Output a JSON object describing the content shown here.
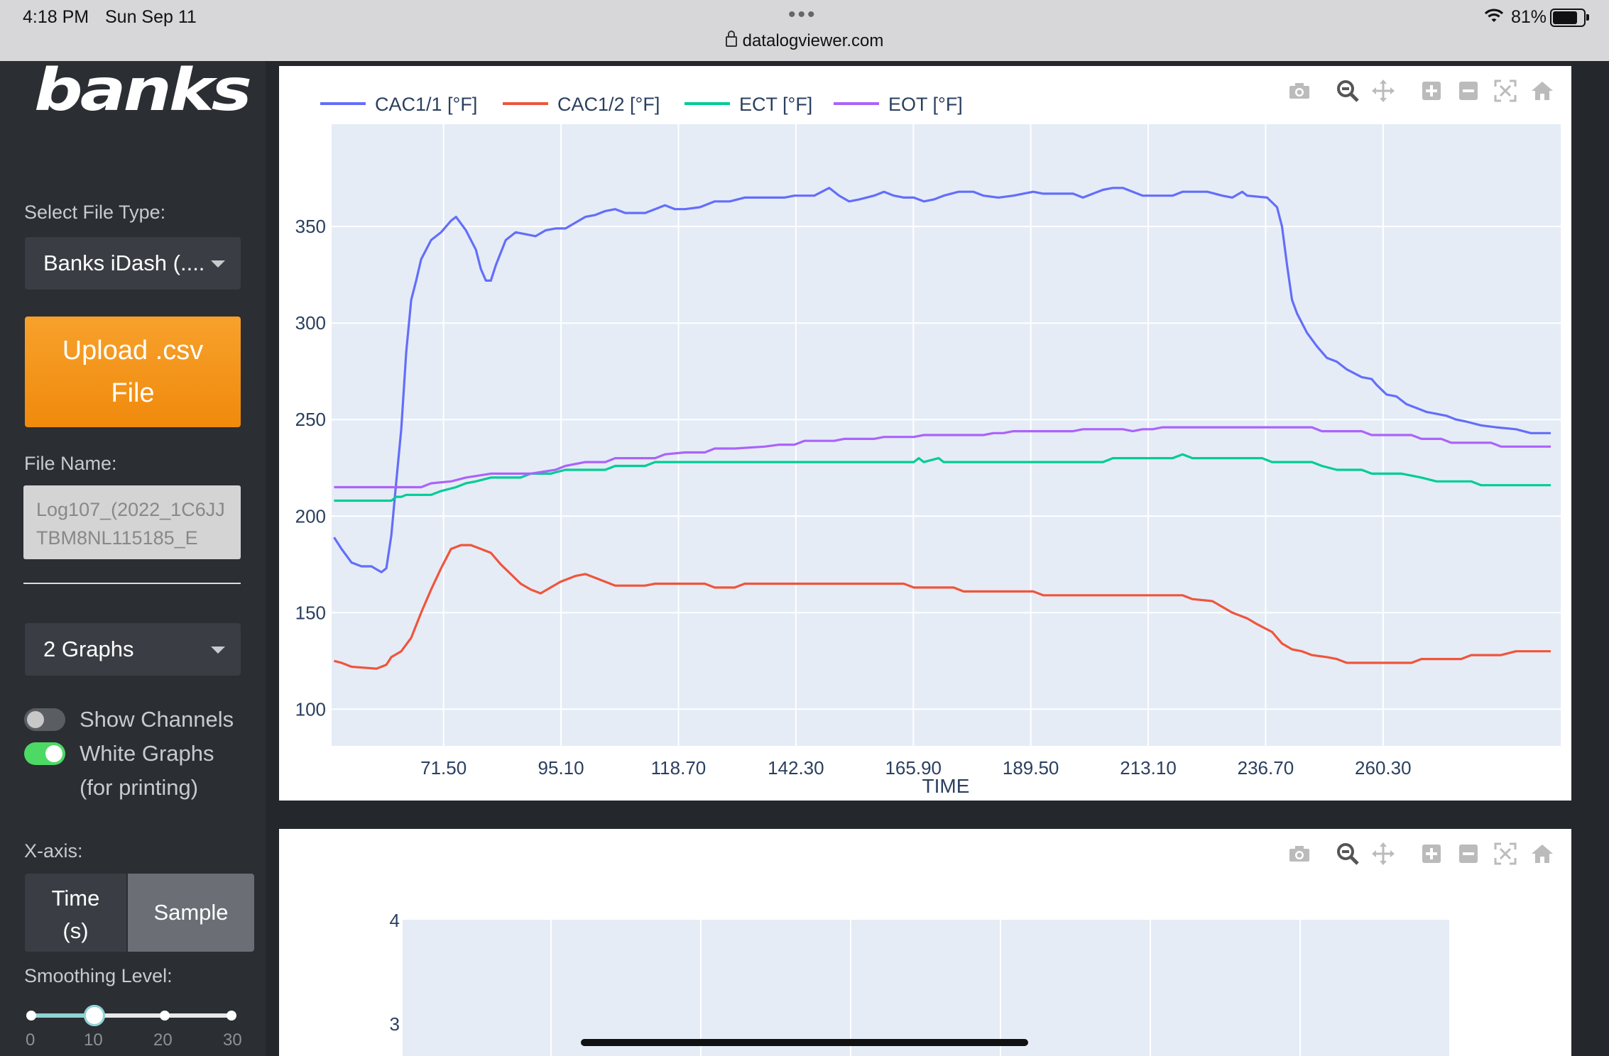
{
  "status_bar": {
    "time": "4:18 PM",
    "date": "Sun Sep 11",
    "url": "datalogviewer.com",
    "battery_pct": "81%",
    "battery_level": 0.81
  },
  "sidebar": {
    "logo": "banks",
    "file_type_label": "Select File Type:",
    "file_type_value": "Banks iDash (....",
    "upload_label_1": "Upload .csv",
    "upload_label_2": "File",
    "file_name_label": "File Name:",
    "file_name_value": "Log107_(2022_1C6JJTBM8NL115185_E",
    "graphs_value": "2 Graphs",
    "show_channels": {
      "label": "Show Channels",
      "on": false
    },
    "white_graphs": {
      "label": "White Graphs",
      "sub": "(for printing)",
      "on": true
    },
    "xaxis_label": "X-axis:",
    "xaxis_time_1": "Time",
    "xaxis_time_2": "(s)",
    "xaxis_sample": "Sample",
    "smoothing_label": "Smoothing Level:",
    "smoothing_value": 10,
    "smoothing_ticks": [
      "0",
      "10",
      "20",
      "30"
    ]
  },
  "toolbar_icons": [
    "camera-icon",
    "zoom-icon",
    "pan-icon",
    "zoom-in-icon",
    "zoom-out-icon",
    "autoscale-icon",
    "reset-axes-icon"
  ],
  "colors": {
    "cac1": "#636efa",
    "cac2": "#ef553b",
    "ect": "#00cc96",
    "eot": "#ab63fa",
    "plot_bg": "#e5ecf6"
  },
  "chart_data": [
    {
      "type": "line",
      "xlabel": "TIME",
      "ylabel": "",
      "xlim": [
        49,
        296
      ],
      "ylim": [
        81,
        403
      ],
      "x_ticks": [
        "71.50",
        "95.10",
        "118.70",
        "142.30",
        "165.90",
        "189.50",
        "213.10",
        "236.70",
        "260.30"
      ],
      "y_ticks": [
        "100",
        "150",
        "200",
        "250",
        "300",
        "350"
      ],
      "grid": true,
      "legend": "top-left, horizontal",
      "series": [
        {
          "name": "CAC1/1 [°F]",
          "color": "#636efa",
          "points": [
            [
              49.5,
              189
            ],
            [
              51,
              183
            ],
            [
              53,
              176
            ],
            [
              55,
              174
            ],
            [
              57,
              174
            ],
            [
              59,
              171
            ],
            [
              60,
              173
            ],
            [
              61,
              190
            ],
            [
              62,
              218
            ],
            [
              63,
              245
            ],
            [
              64,
              285
            ],
            [
              65,
              312
            ],
            [
              66,
              322
            ],
            [
              67,
              333
            ],
            [
              69,
              343
            ],
            [
              71,
              347
            ],
            [
              73,
              353
            ],
            [
              74,
              355
            ],
            [
              76,
              348
            ],
            [
              78,
              338
            ],
            [
              79,
              328
            ],
            [
              80,
              322
            ],
            [
              81,
              322
            ],
            [
              82,
              330
            ],
            [
              84,
              343
            ],
            [
              86,
              347
            ],
            [
              88,
              346
            ],
            [
              90,
              345
            ],
            [
              92,
              348
            ],
            [
              94,
              349
            ],
            [
              96,
              349
            ],
            [
              98,
              352
            ],
            [
              100,
              355
            ],
            [
              102,
              356
            ],
            [
              104,
              358
            ],
            [
              106,
              359
            ],
            [
              108,
              357
            ],
            [
              112,
              357
            ],
            [
              114,
              359
            ],
            [
              116,
              361
            ],
            [
              118,
              359
            ],
            [
              120,
              359
            ],
            [
              123,
              360
            ],
            [
              126,
              363
            ],
            [
              129,
              363
            ],
            [
              132,
              365
            ],
            [
              140,
              365
            ],
            [
              142,
              366
            ],
            [
              146,
              366
            ],
            [
              149,
              370
            ],
            [
              151,
              366
            ],
            [
              153,
              363
            ],
            [
              155,
              364
            ],
            [
              158,
              366
            ],
            [
              160,
              368
            ],
            [
              162,
              366
            ],
            [
              164,
              365
            ],
            [
              166,
              365
            ],
            [
              168,
              363
            ],
            [
              170,
              364
            ],
            [
              172,
              366
            ],
            [
              175,
              368
            ],
            [
              178,
              368
            ],
            [
              180,
              366
            ],
            [
              183,
              365
            ],
            [
              186,
              366
            ],
            [
              188,
              367
            ],
            [
              190,
              368
            ],
            [
              192,
              367
            ],
            [
              198,
              367
            ],
            [
              200,
              365
            ],
            [
              202,
              367
            ],
            [
              204,
              369
            ],
            [
              206,
              370
            ],
            [
              208,
              370
            ],
            [
              210,
              368
            ],
            [
              212,
              366
            ],
            [
              218,
              366
            ],
            [
              220,
              368
            ],
            [
              225,
              368
            ],
            [
              228,
              366
            ],
            [
              230,
              365
            ],
            [
              232,
              368
            ],
            [
              233,
              366
            ],
            [
              237,
              365
            ],
            [
              239,
              360
            ],
            [
              240,
              350
            ],
            [
              241,
              330
            ],
            [
              242,
              312
            ],
            [
              243,
              305
            ],
            [
              245,
              295
            ],
            [
              247,
              288
            ],
            [
              249,
              282
            ],
            [
              251,
              280
            ],
            [
              253,
              276
            ],
            [
              256,
              272
            ],
            [
              258,
              271
            ],
            [
              259,
              268
            ],
            [
              261,
              263
            ],
            [
              263,
              262
            ],
            [
              265,
              258
            ],
            [
              267,
              256
            ],
            [
              269,
              254
            ],
            [
              271,
              253
            ],
            [
              273,
              252
            ],
            [
              275,
              250
            ],
            [
              277,
              249
            ],
            [
              280,
              247
            ],
            [
              283,
              246
            ],
            [
              287,
              245
            ],
            [
              290,
              243
            ],
            [
              294,
              243
            ]
          ]
        },
        {
          "name": "CAC1/2 [°F]",
          "color": "#ef553b",
          "points": [
            [
              49.5,
              125
            ],
            [
              51,
              124
            ],
            [
              53,
              122
            ],
            [
              58,
              121
            ],
            [
              60,
              123
            ],
            [
              61,
              127
            ],
            [
              63,
              130
            ],
            [
              65,
              137
            ],
            [
              67,
              150
            ],
            [
              69,
              162
            ],
            [
              71,
              173
            ],
            [
              73,
              183
            ],
            [
              75,
              185
            ],
            [
              77,
              185
            ],
            [
              79,
              183
            ],
            [
              81,
              181
            ],
            [
              83,
              175
            ],
            [
              85,
              170
            ],
            [
              87,
              165
            ],
            [
              89,
              162
            ],
            [
              91,
              160
            ],
            [
              93,
              163
            ],
            [
              95,
              166
            ],
            [
              98,
              169
            ],
            [
              100,
              170
            ],
            [
              102,
              168
            ],
            [
              104,
              166
            ],
            [
              106,
              164
            ],
            [
              112,
              164
            ],
            [
              114,
              165
            ],
            [
              124,
              165
            ],
            [
              126,
              163
            ],
            [
              130,
              163
            ],
            [
              132,
              165
            ],
            [
              164,
              165
            ],
            [
              166,
              163
            ],
            [
              174,
              163
            ],
            [
              176,
              161
            ],
            [
              190,
              161
            ],
            [
              192,
              159
            ],
            [
              220,
              159
            ],
            [
              222,
              157
            ],
            [
              226,
              156
            ],
            [
              228,
              153
            ],
            [
              230,
              150
            ],
            [
              233,
              147
            ],
            [
              235,
              144
            ],
            [
              238,
              140
            ],
            [
              240,
              134
            ],
            [
              242,
              131
            ],
            [
              244,
              130
            ],
            [
              246,
              128
            ],
            [
              249,
              127
            ],
            [
              251,
              126
            ],
            [
              253,
              124
            ],
            [
              266,
              124
            ],
            [
              268,
              126
            ],
            [
              276,
              126
            ],
            [
              278,
              128
            ],
            [
              284,
              128
            ],
            [
              287,
              130
            ],
            [
              294,
              130
            ]
          ]
        },
        {
          "name": "ECT [°F]",
          "color": "#00cc96",
          "points": [
            [
              49.5,
              208
            ],
            [
              61,
              208
            ],
            [
              62,
              210
            ],
            [
              63,
              210
            ],
            [
              64,
              211
            ],
            [
              69,
              211
            ],
            [
              71,
              213
            ],
            [
              74,
              215
            ],
            [
              76,
              217
            ],
            [
              78,
              218
            ],
            [
              81,
              220
            ],
            [
              87,
              220
            ],
            [
              89,
              222
            ],
            [
              93,
              222
            ],
            [
              96,
              224
            ],
            [
              104,
              224
            ],
            [
              106,
              226
            ],
            [
              112,
              226
            ],
            [
              114,
              228
            ],
            [
              166,
              228
            ],
            [
              167,
              230
            ],
            [
              168,
              228
            ],
            [
              171,
              230
            ],
            [
              172,
              228
            ],
            [
              204,
              228
            ],
            [
              206,
              230
            ],
            [
              218,
              230
            ],
            [
              220,
              232
            ],
            [
              222,
              230
            ],
            [
              236,
              230
            ],
            [
              238,
              228
            ],
            [
              246,
              228
            ],
            [
              248,
              226
            ],
            [
              251,
              224
            ],
            [
              256,
              224
            ],
            [
              258,
              222
            ],
            [
              264,
              222
            ],
            [
              268,
              220
            ],
            [
              271,
              218
            ],
            [
              278,
              218
            ],
            [
              280,
              216
            ],
            [
              294,
              216
            ]
          ]
        },
        {
          "name": "EOT [°F]",
          "color": "#ab63fa",
          "points": [
            [
              49.5,
              215
            ],
            [
              67,
              215
            ],
            [
              69,
              217
            ],
            [
              73,
              218
            ],
            [
              76,
              220
            ],
            [
              81,
              222
            ],
            [
              89,
              222
            ],
            [
              94,
              224
            ],
            [
              96,
              226
            ],
            [
              100,
              228
            ],
            [
              104,
              228
            ],
            [
              106,
              230
            ],
            [
              114,
              230
            ],
            [
              116,
              232
            ],
            [
              120,
              233
            ],
            [
              124,
              233
            ],
            [
              126,
              235
            ],
            [
              130,
              235
            ],
            [
              136,
              236
            ],
            [
              139,
              237
            ],
            [
              142,
              237
            ],
            [
              144,
              239
            ],
            [
              150,
              239
            ],
            [
              152,
              240
            ],
            [
              158,
              240
            ],
            [
              160,
              241
            ],
            [
              166,
              241
            ],
            [
              168,
              242
            ],
            [
              180,
              242
            ],
            [
              182,
              243
            ],
            [
              184,
              243
            ],
            [
              186,
              244
            ],
            [
              198,
              244
            ],
            [
              200,
              245
            ],
            [
              208,
              245
            ],
            [
              210,
              244
            ],
            [
              212,
              245
            ],
            [
              214,
              245
            ],
            [
              216,
              246
            ],
            [
              246,
              246
            ],
            [
              248,
              244
            ],
            [
              256,
              244
            ],
            [
              258,
              242
            ],
            [
              266,
              242
            ],
            [
              268,
              240
            ],
            [
              272,
              240
            ],
            [
              274,
              238
            ],
            [
              282,
              238
            ],
            [
              284,
              236
            ],
            [
              294,
              236
            ]
          ]
        }
      ]
    },
    {
      "type": "line",
      "y_ticks": [
        "4",
        "3"
      ],
      "grid": true,
      "series": []
    }
  ]
}
